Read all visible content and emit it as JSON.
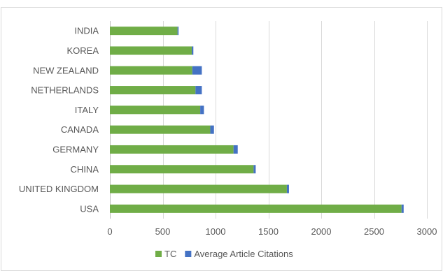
{
  "chart_data": {
    "type": "bar",
    "orientation": "horizontal",
    "stacked": true,
    "categories": [
      "USA",
      "UNITED KINGDOM",
      "CHINA",
      "GERMANY",
      "CANADA",
      "ITALY",
      "NETHERLANDS",
      "NEW ZEALAND",
      "KOREA",
      "INDIA"
    ],
    "series": [
      {
        "name": "TC",
        "color": "#70ad47",
        "values": [
          2760,
          1675,
          1360,
          1170,
          950,
          855,
          810,
          780,
          775,
          640
        ]
      },
      {
        "name": "Average Article Citations",
        "color": "#4472c4",
        "values": [
          20,
          20,
          20,
          40,
          35,
          35,
          60,
          90,
          15,
          10
        ]
      }
    ],
    "xlim": [
      0,
      3000
    ],
    "xticks": [
      0,
      500,
      1000,
      1500,
      2000,
      2500,
      3000
    ],
    "grid": "vertical",
    "legend_position": "bottom",
    "title": "",
    "xlabel": "",
    "ylabel": ""
  }
}
